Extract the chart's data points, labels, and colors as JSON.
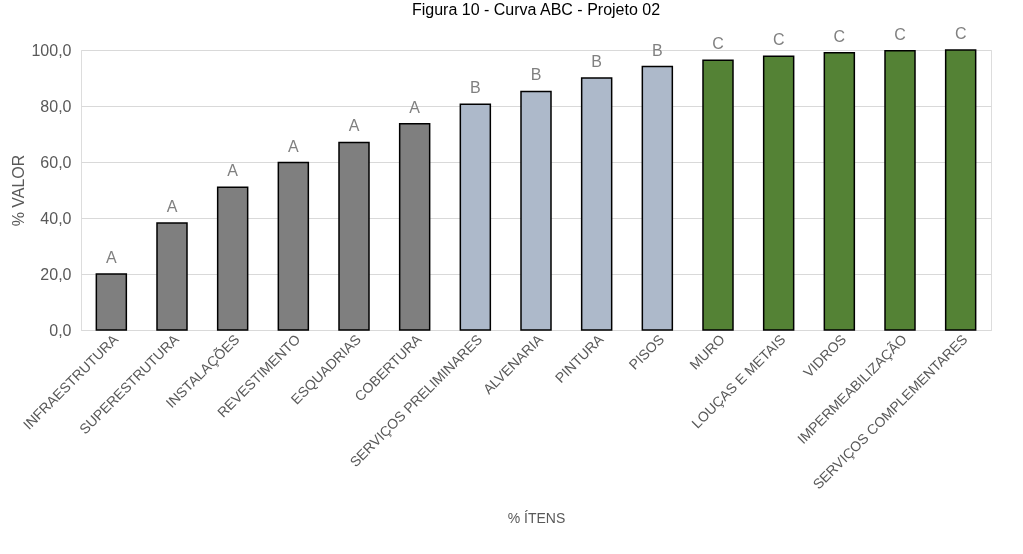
{
  "chart_data": {
    "type": "bar",
    "title": "Figura 10 - Curva ABC - Projeto 02",
    "xlabel": "% ÍTENS",
    "ylabel": "% VALOR",
    "categories": [
      "INFRAESTRUTURA",
      "SUPERESTRUTURA",
      "INSTALAÇÕES",
      "REVESTIMENTO",
      "ESQUADRIAS",
      "COBERTURA",
      "SERVIÇOS PRELIMINARES",
      "ALVENARIA",
      "PINTURA",
      "PISOS",
      "MURO",
      "LOUÇAS E METAIS",
      "VIDROS",
      "IMPERMEABILIZAÇÃO",
      "SERVIÇOS COMPLEMENTARES"
    ],
    "values": [
      20.0,
      38.2,
      51.0,
      59.8,
      67.0,
      73.7,
      80.6,
      85.2,
      90.0,
      94.1,
      96.3,
      97.8,
      99.0,
      99.7,
      100.0
    ],
    "colors": [
      "#7f7f7f",
      "#7f7f7f",
      "#7f7f7f",
      "#7f7f7f",
      "#7f7f7f",
      "#7f7f7f",
      "#adb9ca",
      "#adb9ca",
      "#adb9ca",
      "#adb9ca",
      "#548235",
      "#548235",
      "#548235",
      "#548235",
      "#548235"
    ],
    "value_labels": [
      "A",
      "A",
      "A",
      "A",
      "A",
      "A",
      "B",
      "B",
      "B",
      "B",
      "C",
      "C",
      "C",
      "C",
      "C"
    ],
    "ylim": [
      0,
      100
    ],
    "yticks": [
      {
        "value": 0,
        "label": "0,0"
      },
      {
        "value": 20,
        "label": "20,0"
      },
      {
        "value": 40,
        "label": "40,0"
      },
      {
        "value": 60,
        "label": "60,0"
      },
      {
        "value": 80,
        "label": "80,0"
      },
      {
        "value": 100,
        "label": "100,0"
      }
    ],
    "grid": "y"
  }
}
